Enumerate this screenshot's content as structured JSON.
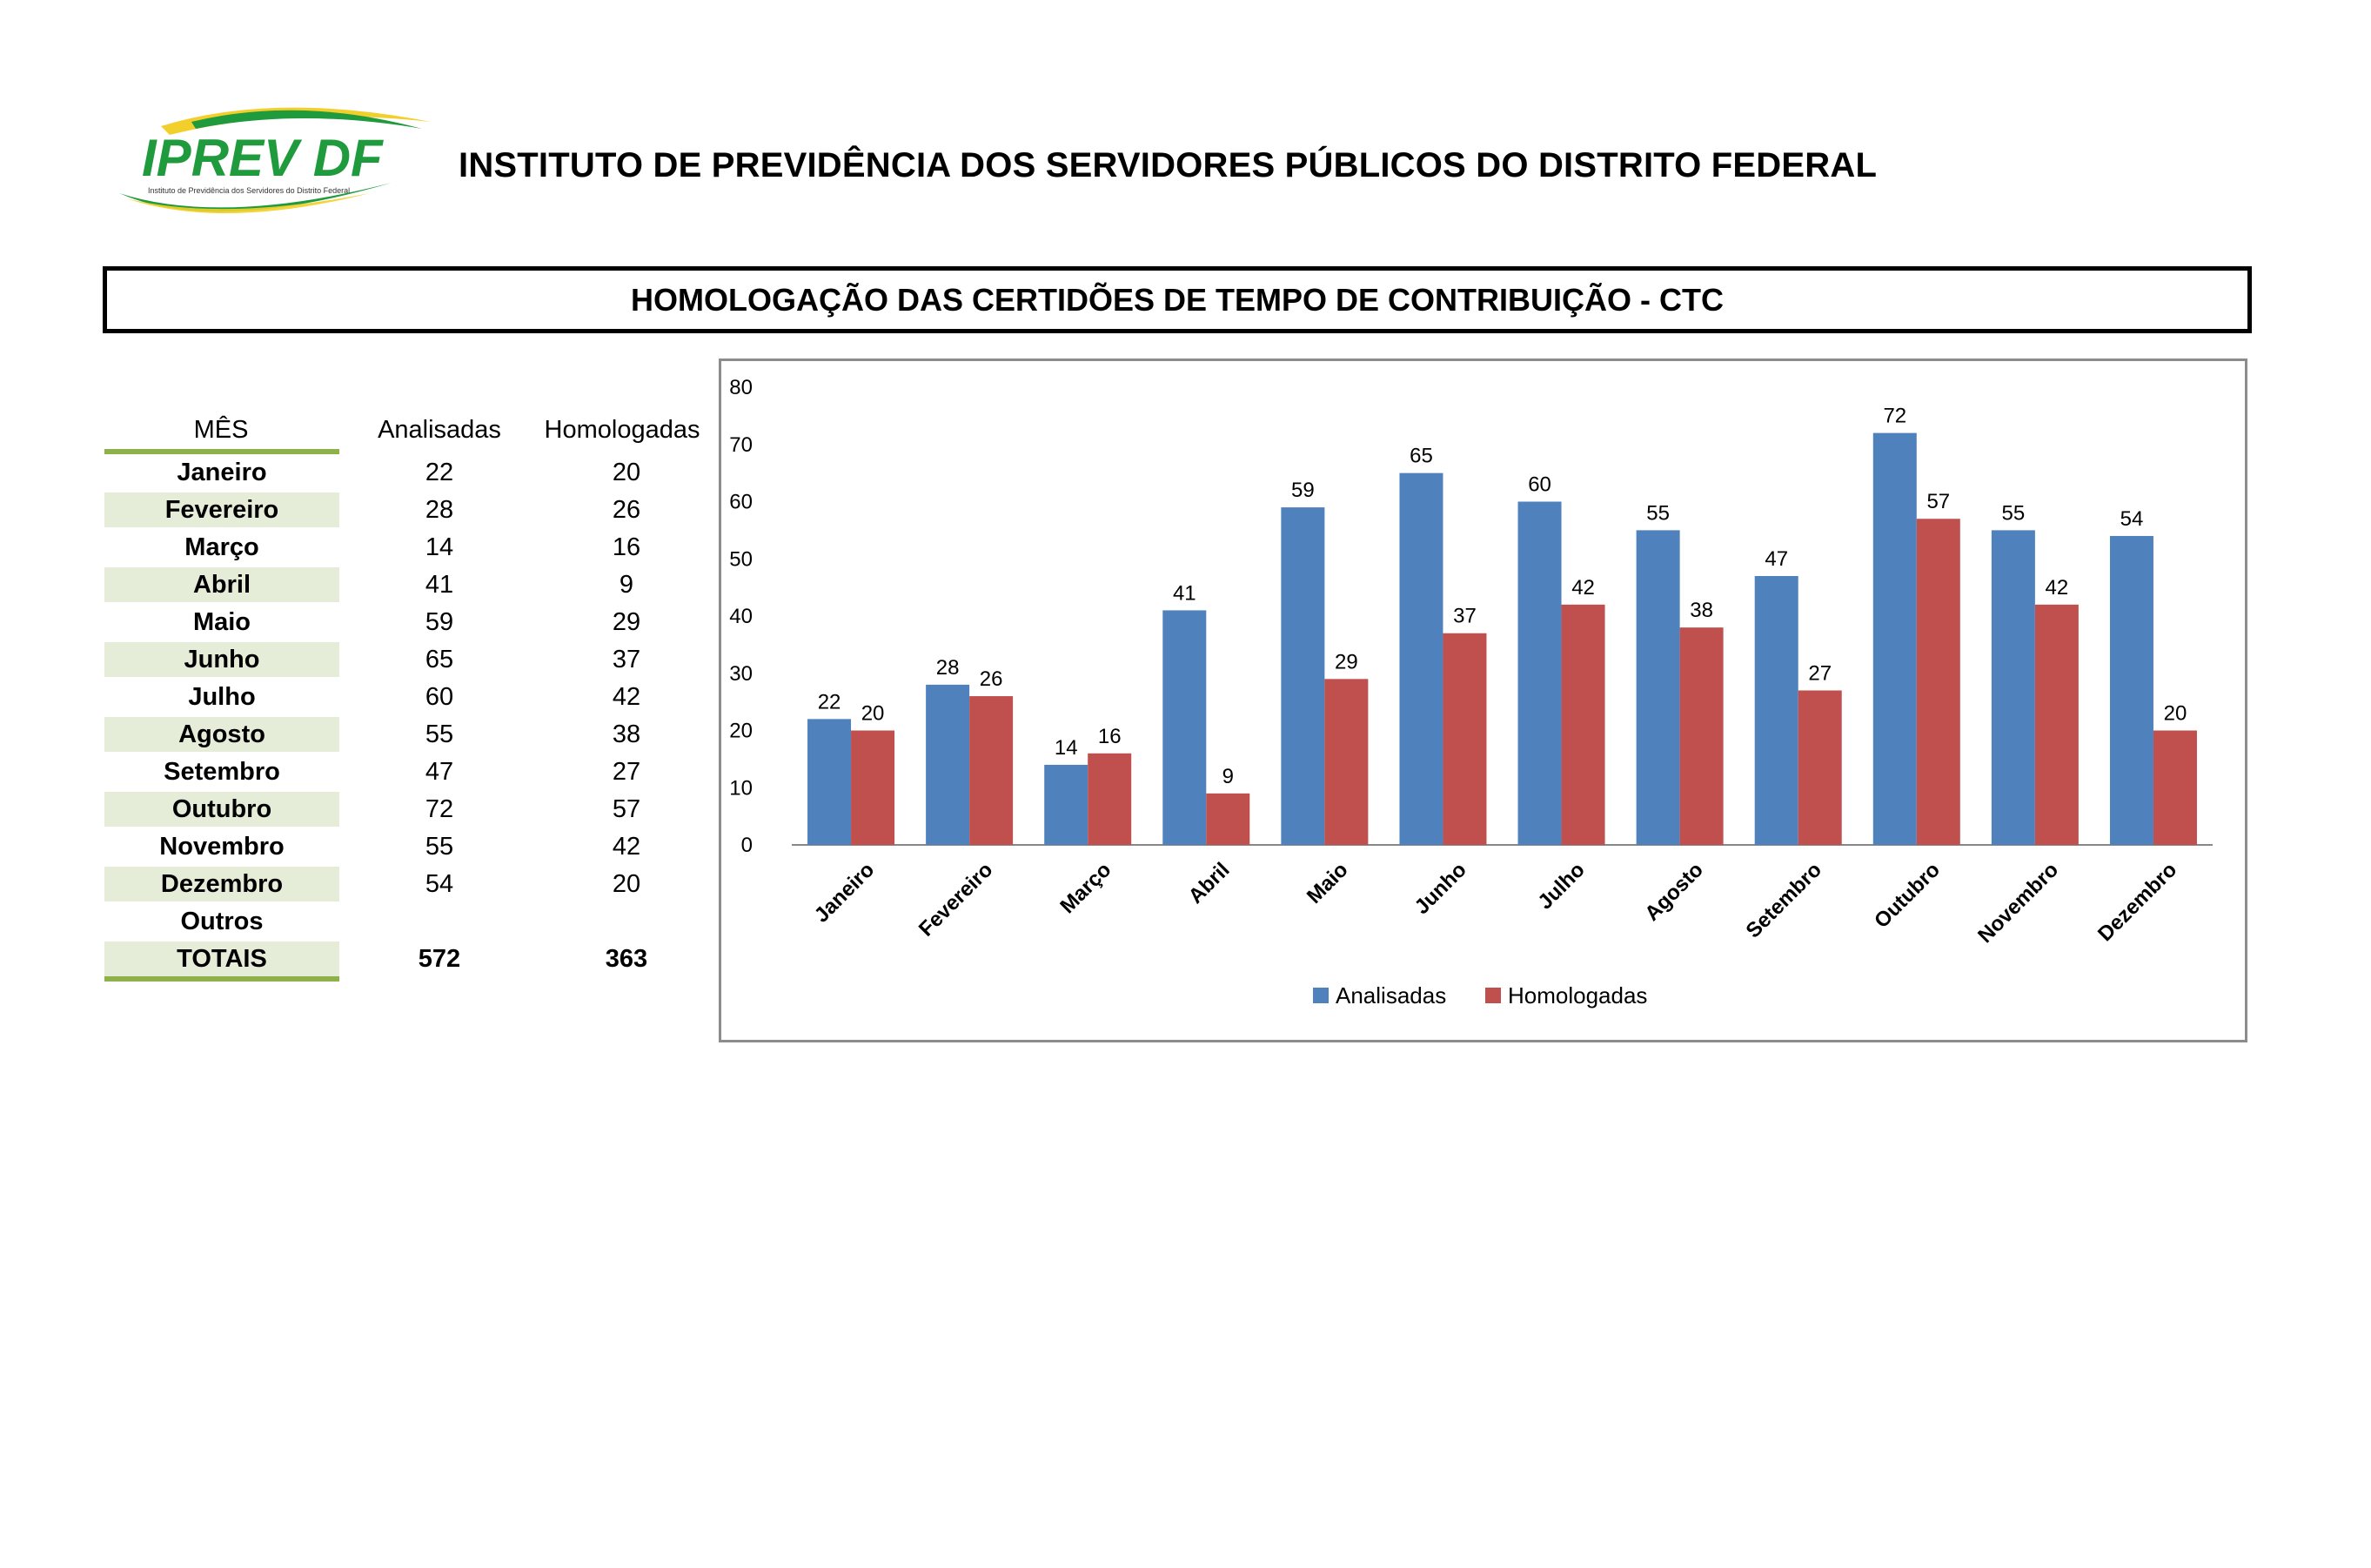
{
  "header": {
    "logo_text": "IPREV DF",
    "logo_subtext": "Instituto de Previdência dos Servidores do Distrito Federal",
    "org_title": "INSTITUTO DE PREVIDÊNCIA DOS SERVIDORES PÚBLICOS DO DISTRITO FEDERAL"
  },
  "report_title": "HOMOLOGAÇÃO DAS CERTIDÕES DE TEMPO DE CONTRIBUIÇÃO - CTC",
  "table": {
    "headers": {
      "month": "MÊS",
      "analisadas": "Analisadas",
      "homologadas": "Homologadas"
    },
    "rows": [
      {
        "month": "Janeiro",
        "analisadas": "22",
        "homologadas": "20"
      },
      {
        "month": "Fevereiro",
        "analisadas": "28",
        "homologadas": "26"
      },
      {
        "month": "Março",
        "analisadas": "14",
        "homologadas": "16"
      },
      {
        "month": "Abril",
        "analisadas": "41",
        "homologadas": "9"
      },
      {
        "month": "Maio",
        "analisadas": "59",
        "homologadas": "29"
      },
      {
        "month": "Junho",
        "analisadas": "65",
        "homologadas": "37"
      },
      {
        "month": "Julho",
        "analisadas": "60",
        "homologadas": "42"
      },
      {
        "month": "Agosto",
        "analisadas": "55",
        "homologadas": "38"
      },
      {
        "month": "Setembro",
        "analisadas": "47",
        "homologadas": "27"
      },
      {
        "month": "Outubro",
        "analisadas": "72",
        "homologadas": "57"
      },
      {
        "month": "Novembro",
        "analisadas": "55",
        "homologadas": "42"
      },
      {
        "month": "Dezembro",
        "analisadas": "54",
        "homologadas": "20"
      },
      {
        "month": "Outros",
        "analisadas": "",
        "homologadas": ""
      }
    ],
    "totals": {
      "label": "TOTAIS",
      "analisadas": "572",
      "homologadas": "363"
    }
  },
  "colors": {
    "analisadas": "#4f81bd",
    "homologadas": "#c0504d",
    "table_accent": "#8db24a",
    "table_shade": "#e5edd9",
    "logo_green": "#1f9a3c",
    "logo_yellow": "#f2cf2a"
  },
  "chart_data": {
    "type": "bar",
    "categories": [
      "Janeiro",
      "Fevereiro",
      "Março",
      "Abril",
      "Maio",
      "Junho",
      "Julho",
      "Agosto",
      "Setembro",
      "Outubro",
      "Novembro",
      "Dezembro"
    ],
    "series": [
      {
        "name": "Analisadas",
        "values": [
          22,
          28,
          14,
          41,
          59,
          65,
          60,
          55,
          47,
          72,
          55,
          54
        ]
      },
      {
        "name": "Homologadas",
        "values": [
          20,
          26,
          16,
          9,
          29,
          37,
          42,
          38,
          27,
          57,
          42,
          20
        ]
      }
    ],
    "ylim": [
      0,
      80
    ],
    "yticks": [
      0,
      10,
      20,
      30,
      40,
      50,
      60,
      70,
      80
    ],
    "grid": false,
    "data_labels": true,
    "legend": "bottom"
  }
}
